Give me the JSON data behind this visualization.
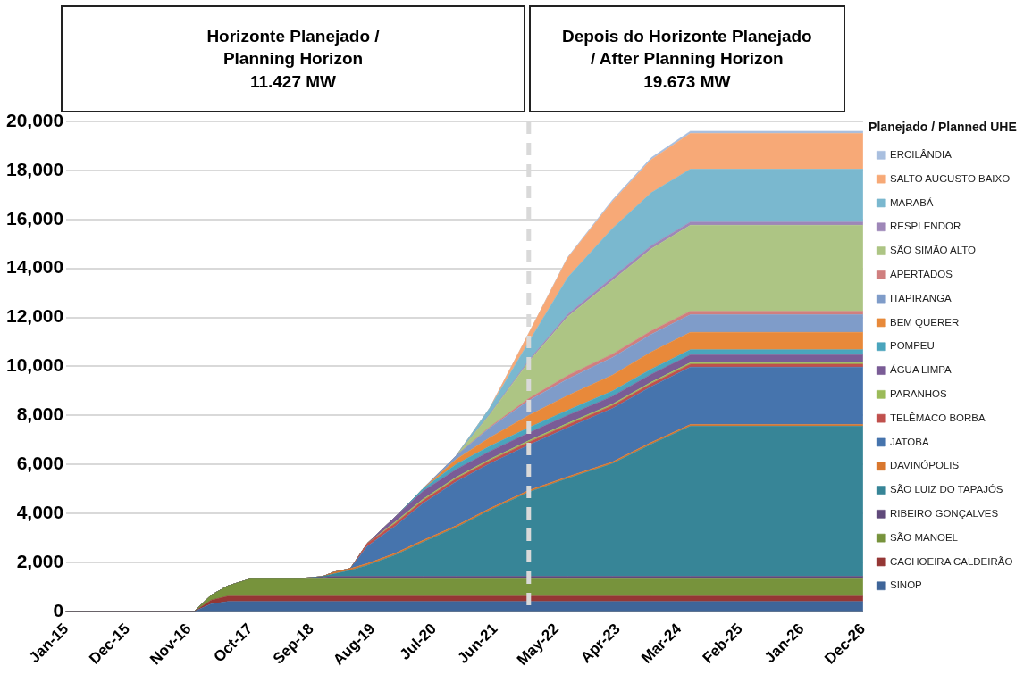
{
  "chart_data": {
    "type": "area",
    "stacked": true,
    "legend": "right",
    "legend_title": "Planejado / Planned UHE",
    "grid": "y",
    "annotations": [
      "Horizonte Planejado /\nPlanning Horizon\n11.427 MW",
      "Depois do Horizonte Planejado\n/ After Planning Horizon\n19.673 MW"
    ],
    "x": [
      "2015-01",
      "2016-12",
      "2017-03",
      "2017-06",
      "2017-10",
      "2018-06",
      "2018-11",
      "2019-01",
      "2019-04",
      "2019-07",
      "2019-12",
      "2020-05",
      "2020-11",
      "2021-05",
      "2021-12",
      "2022-07",
      "2023-03",
      "2023-10",
      "2024-05",
      "2026-12"
    ],
    "xlim": [
      "2015-01",
      "2026-12"
    ],
    "xticks": [
      {
        "value": "2015-01",
        "label": "Jan-15"
      },
      {
        "value": "2015-12",
        "label": "Dec-15"
      },
      {
        "value": "2016-11",
        "label": "Nov-16"
      },
      {
        "value": "2017-10",
        "label": "Oct-17"
      },
      {
        "value": "2018-09",
        "label": "Sep-18"
      },
      {
        "value": "2019-08",
        "label": "Aug-19"
      },
      {
        "value": "2020-07",
        "label": "Jul-20"
      },
      {
        "value": "2021-06",
        "label": "Jun-21"
      },
      {
        "value": "2022-05",
        "label": "May-22"
      },
      {
        "value": "2023-04",
        "label": "Apr-23"
      },
      {
        "value": "2024-03",
        "label": "Mar-24"
      },
      {
        "value": "2025-02",
        "label": "Feb-25"
      },
      {
        "value": "2026-01",
        "label": "Jan-26"
      },
      {
        "value": "2026-12",
        "label": "Dec-26"
      }
    ],
    "ylim": [
      0,
      20000
    ],
    "yticks": [
      {
        "value": 0,
        "label": "0"
      },
      {
        "value": 2000,
        "label": "2,000"
      },
      {
        "value": 4000,
        "label": "4,000"
      },
      {
        "value": 6000,
        "label": "6,000"
      },
      {
        "value": 8000,
        "label": "8,000"
      },
      {
        "value": 10000,
        "label": "10,000"
      },
      {
        "value": 12000,
        "label": "12,000"
      },
      {
        "value": 14000,
        "label": "14,000"
      },
      {
        "value": 16000,
        "label": "16,000"
      },
      {
        "value": 18000,
        "label": "18,000"
      },
      {
        "value": 20000,
        "label": "20,000"
      }
    ],
    "ref_lines": [
      {
        "axis": "x",
        "value": "2021-12",
        "label": null,
        "color": "#d9d9d9",
        "line_style": "dashed"
      }
    ],
    "series": [
      {
        "name": "SINOP",
        "color": "#3f6599",
        "values": [
          0,
          0,
          300,
          400,
          400,
          400,
          400,
          400,
          400,
          400,
          400,
          400,
          400,
          400,
          400,
          400,
          400,
          400,
          400,
          400
        ]
      },
      {
        "name": "CACHOEIRA CALDEIRÃO",
        "color": "#953735",
        "values": [
          0,
          0,
          160,
          220,
          220,
          220,
          220,
          220,
          220,
          220,
          220,
          220,
          220,
          220,
          220,
          220,
          220,
          220,
          220,
          220
        ]
      },
      {
        "name": "SÃO MANOEL",
        "color": "#77933c",
        "values": [
          0,
          0,
          200,
          420,
          700,
          700,
          700,
          700,
          700,
          700,
          700,
          700,
          700,
          700,
          700,
          700,
          700,
          700,
          700,
          700
        ]
      },
      {
        "name": "RIBEIRO GONÇALVES",
        "color": "#604a7b",
        "values": [
          0,
          0,
          0,
          0,
          0,
          0,
          80,
          110,
          110,
          110,
          110,
          110,
          110,
          110,
          110,
          110,
          110,
          110,
          110,
          110
        ]
      },
      {
        "name": "SÃO LUIZ DO TAPAJÓS",
        "color": "#378597",
        "values": [
          0,
          0,
          0,
          0,
          0,
          0,
          20,
          100,
          250,
          450,
          870,
          1400,
          2000,
          2700,
          3440,
          4000,
          4600,
          5400,
          6130,
          6130
        ]
      },
      {
        "name": "DAVINÓPOLIS",
        "color": "#d9772e",
        "values": [
          0,
          0,
          0,
          0,
          0,
          0,
          0,
          70,
          70,
          70,
          70,
          70,
          70,
          70,
          70,
          70,
          70,
          70,
          70,
          70
        ]
      },
      {
        "name": "JATOBÁ",
        "color": "#4674ad",
        "values": [
          0,
          0,
          0,
          0,
          0,
          0,
          0,
          0,
          0,
          700,
          1100,
          1500,
          1800,
          1830,
          1850,
          2000,
          2180,
          2280,
          2340,
          2340
        ]
      },
      {
        "name": "TELÊMACO BORBA",
        "color": "#c0504d",
        "values": [
          0,
          0,
          0,
          0,
          0,
          0,
          0,
          0,
          0,
          120,
          120,
          120,
          120,
          120,
          120,
          120,
          120,
          120,
          120,
          120
        ]
      },
      {
        "name": "PARANHOS",
        "color": "#9bbb59",
        "values": [
          0,
          0,
          0,
          0,
          0,
          0,
          0,
          0,
          0,
          0,
          60,
          60,
          60,
          60,
          60,
          60,
          60,
          60,
          60,
          60
        ]
      },
      {
        "name": "ÁGUA LIMPA",
        "color": "#7a5c96",
        "values": [
          0,
          0,
          0,
          0,
          0,
          0,
          0,
          0,
          0,
          0,
          200,
          320,
          320,
          320,
          320,
          320,
          320,
          320,
          320,
          320
        ]
      },
      {
        "name": "POMPEU",
        "color": "#4aa5bd",
        "values": [
          0,
          0,
          0,
          0,
          0,
          0,
          0,
          0,
          0,
          0,
          0,
          100,
          210,
          210,
          210,
          210,
          210,
          210,
          210,
          210
        ]
      },
      {
        "name": "BEM QUERER",
        "color": "#e8893a",
        "values": [
          0,
          0,
          0,
          0,
          0,
          0,
          0,
          0,
          0,
          0,
          0,
          0,
          200,
          350,
          500,
          600,
          650,
          700,
          710,
          710
        ]
      },
      {
        "name": "ITAPIRANGA",
        "color": "#7f9cc9",
        "values": [
          0,
          0,
          0,
          0,
          0,
          0,
          0,
          0,
          0,
          0,
          0,
          0,
          150,
          400,
          600,
          680,
          720,
          720,
          720,
          720
        ]
      },
      {
        "name": "APERTADOS",
        "color": "#d07f7f",
        "values": [
          0,
          0,
          0,
          0,
          0,
          0,
          0,
          0,
          0,
          0,
          0,
          0,
          0,
          40,
          90,
          140,
          140,
          140,
          140,
          140
        ]
      },
      {
        "name": "SÃO SIMÃO ALTO",
        "color": "#adc584",
        "values": [
          0,
          0,
          0,
          0,
          0,
          0,
          0,
          0,
          0,
          0,
          0,
          0,
          0,
          500,
          1500,
          2400,
          3000,
          3350,
          3510,
          3510
        ]
      },
      {
        "name": "RESPLENDOR",
        "color": "#9e87b8",
        "values": [
          0,
          0,
          0,
          0,
          0,
          0,
          0,
          0,
          0,
          0,
          0,
          0,
          0,
          20,
          60,
          100,
          130,
          130,
          130,
          130
        ]
      },
      {
        "name": "MARABÁ",
        "color": "#7ab8cf",
        "values": [
          0,
          0,
          0,
          0,
          0,
          0,
          0,
          0,
          0,
          0,
          0,
          0,
          0,
          250,
          750,
          1500,
          2000,
          2160,
          2160,
          2160
        ]
      },
      {
        "name": "SALTO AUGUSTO BAIXO",
        "color": "#f7a977",
        "values": [
          0,
          0,
          0,
          0,
          0,
          0,
          0,
          0,
          0,
          0,
          0,
          0,
          0,
          0,
          350,
          800,
          1100,
          1350,
          1460,
          1460
        ]
      },
      {
        "name": "ERCILÂNDIA",
        "color": "#a9bfdf",
        "values": [
          0,
          0,
          0,
          0,
          0,
          0,
          0,
          0,
          0,
          0,
          0,
          0,
          0,
          0,
          0,
          30,
          60,
          80,
          90,
          90
        ]
      }
    ]
  }
}
